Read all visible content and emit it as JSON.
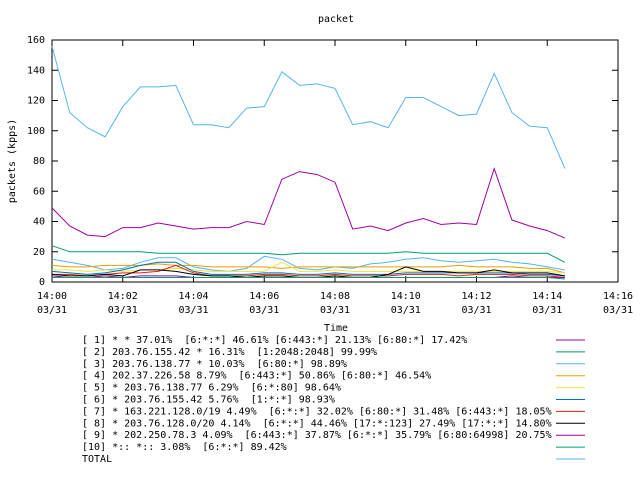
{
  "chart_data": {
    "type": "line",
    "title": "packet",
    "xlabel": "Time",
    "ylabel": "packets (kpps)",
    "x": [
      0,
      0.5,
      1,
      1.5,
      2,
      2.5,
      3,
      3.5,
      4,
      4.5,
      5,
      5.5,
      6,
      6.5,
      7,
      7.5,
      8,
      8.5,
      9,
      9.5,
      10,
      10.5,
      11,
      11.5,
      12,
      12.5,
      13,
      13.5,
      14,
      14.5
    ],
    "xlim": [
      0,
      16
    ],
    "xticks": [
      {
        "value": 0,
        "label": "14:00\n03/31"
      },
      {
        "value": 2,
        "label": "14:02\n03/31"
      },
      {
        "value": 4,
        "label": "14:04\n03/31"
      },
      {
        "value": 6,
        "label": "14:06\n03/31"
      },
      {
        "value": 8,
        "label": "14:08\n03/31"
      },
      {
        "value": 10,
        "label": "14:10\n03/31"
      },
      {
        "value": 12,
        "label": "14:12\n03/31"
      },
      {
        "value": 14,
        "label": "14:14\n03/31"
      },
      {
        "value": 16,
        "label": "14:16\n03/31"
      }
    ],
    "ylim": [
      0,
      160
    ],
    "yticks": [
      0,
      20,
      40,
      60,
      80,
      100,
      120,
      140,
      160
    ],
    "series": [
      {
        "name": "[ 1] * * 37.01%  [6:*:*] 46.61% [6:443:*] 21.13% [6:80:*] 17.42%",
        "color": "#a000a0",
        "values": [
          49,
          37,
          31,
          30,
          36,
          36,
          39,
          37,
          35,
          36,
          36,
          40,
          38,
          68,
          73,
          71,
          66,
          35,
          37,
          34,
          39,
          42,
          38,
          39,
          38,
          75,
          41,
          37,
          34,
          29
        ]
      },
      {
        "name": "[ 2] 203.76.155.42 * 16.31%  [1:2048:2048] 99.99%",
        "color": "#009e73",
        "values": [
          24,
          20,
          20,
          20,
          20,
          20,
          19,
          19,
          19,
          19,
          19,
          19,
          19,
          18,
          19,
          19,
          19,
          19,
          19,
          19,
          20,
          19,
          19,
          19,
          19,
          19,
          19,
          19,
          19,
          13
        ]
      },
      {
        "name": "[ 3] 203.76.138.77 * 10.03%  [6:80:*] 98.89%",
        "color": "#56b4e9",
        "values": [
          15,
          13,
          11,
          8,
          9,
          13,
          16,
          16,
          10,
          8,
          7,
          9,
          17,
          15,
          9,
          8,
          10,
          9,
          12,
          13,
          15,
          16,
          14,
          13,
          14,
          15,
          13,
          12,
          10,
          8
        ]
      },
      {
        "name": "[ 4] 202.37.226.58 8.79%  [6:443:*] 50.86% [6:80:*] 46.54%",
        "color": "#e69f00",
        "values": [
          11,
          10,
          10,
          11,
          11,
          11,
          12,
          11,
          11,
          10,
          10,
          10,
          10,
          9,
          10,
          10,
          10,
          10,
          10,
          10,
          10,
          10,
          10,
          11,
          10,
          10,
          10,
          9,
          9,
          6
        ]
      },
      {
        "name": "[ 5] * 203.76.138.77 6.29%  [6:*:80] 98.64%",
        "color": "#f0e442",
        "values": [
          8,
          8,
          7,
          8,
          7,
          8,
          8,
          9,
          8,
          7,
          7,
          7,
          7,
          13,
          7,
          7,
          8,
          7,
          7,
          7,
          7,
          7,
          7,
          7,
          7,
          7,
          7,
          7,
          7,
          6
        ]
      },
      {
        "name": "[ 6] * 203.76.155.42 5.76%  [1:*:*] 98.93%",
        "color": "#0072b2",
        "values": [
          7,
          6,
          5,
          6,
          8,
          11,
          13,
          13,
          7,
          5,
          5,
          5,
          6,
          6,
          5,
          5,
          6,
          5,
          5,
          5,
          6,
          6,
          6,
          6,
          6,
          6,
          6,
          5,
          5,
          4
        ]
      },
      {
        "name": "[ 7] * 163.221.128.0/19 4.49%  [6:*:*] 32.02% [6:80:*] 31.48% [6:443:*] 18.05%",
        "color": "#e51e10",
        "values": [
          5,
          5,
          4,
          5,
          6,
          6,
          7,
          11,
          6,
          4,
          4,
          4,
          5,
          5,
          4,
          4,
          5,
          4,
          4,
          4,
          5,
          5,
          5,
          4,
          5,
          5,
          5,
          4,
          4,
          3
        ]
      },
      {
        "name": "[ 8] * 203.76.128.0/20 4.14%  [6:*:*] 44.46% [17:*:123] 27.49% [17:*:*] 14.80%",
        "color": "#000000",
        "values": [
          5,
          4,
          4,
          5,
          4,
          8,
          8,
          7,
          5,
          4,
          4,
          3,
          4,
          4,
          3,
          3,
          4,
          3,
          3,
          5,
          10,
          7,
          7,
          6,
          6,
          8,
          6,
          6,
          6,
          4
        ]
      },
      {
        "name": "[ 9] * 202.250.78.3 4.09%  [6:443:*] 37.87% [6:*:*] 35.79% [6:80:64998] 20.75%",
        "color": "#a000a0",
        "values": [
          4,
          3,
          3,
          4,
          3,
          4,
          4,
          4,
          3,
          3,
          3,
          3,
          3,
          3,
          3,
          3,
          3,
          3,
          3,
          3,
          3,
          3,
          3,
          3,
          3,
          3,
          4,
          3,
          3,
          3
        ]
      },
      {
        "name": "[10] *:: *:: 3.08%  [6:*:*] 89.42%",
        "color": "#009e73",
        "values": [
          3,
          3,
          3,
          3,
          3,
          3,
          3,
          3,
          3,
          3,
          3,
          3,
          3,
          3,
          3,
          3,
          3,
          3,
          3,
          3,
          3,
          3,
          3,
          3,
          3,
          3,
          3,
          3,
          3,
          2
        ]
      },
      {
        "name": "TOTAL",
        "color": "#56b4e9",
        "values": [
          156,
          112,
          102,
          96,
          116,
          129,
          129,
          130,
          104,
          104,
          102,
          115,
          116,
          139,
          130,
          131,
          128,
          104,
          106,
          102,
          122,
          122,
          116,
          110,
          111,
          138,
          112,
          103,
          102,
          75
        ]
      }
    ]
  }
}
